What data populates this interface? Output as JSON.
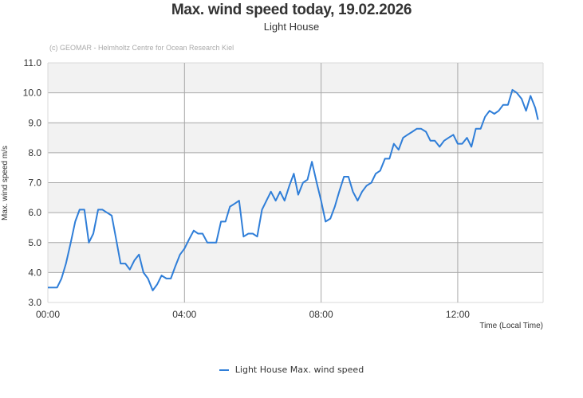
{
  "header": {
    "title": "Max. wind speed today, 19.02.2026",
    "subtitle": "Light House",
    "credit": "(c) GEOMAR - Helmholtz Centre for Ocean Research Kiel"
  },
  "legend": {
    "label": "Light House Max. wind speed",
    "color": "#2f7ed8"
  },
  "chart_data": {
    "type": "line",
    "title": "Max. wind speed today, 19.02.2026",
    "subtitle": "Light House",
    "xlabel": "Time (Local Time)",
    "ylabel": "Max. wind speed m/s",
    "ylim": [
      3.0,
      11.0
    ],
    "xlim_hours": [
      0,
      14.5
    ],
    "yticks": [
      "3.0",
      "4.0",
      "5.0",
      "6.0",
      "7.0",
      "8.0",
      "9.0",
      "10.0",
      "11.0"
    ],
    "xticks": [
      {
        "label": "00:00",
        "h": 0
      },
      {
        "label": "04:00",
        "h": 4
      },
      {
        "label": "08:00",
        "h": 8
      },
      {
        "label": "12:00",
        "h": 12
      }
    ],
    "grid": true,
    "legend_position": "bottom",
    "series": [
      {
        "name": "Light House Max. wind speed",
        "color": "#2f7ed8",
        "x_hours": [
          0,
          0.13,
          0.27,
          0.4,
          0.53,
          0.67,
          0.8,
          0.93,
          1.07,
          1.2,
          1.33,
          1.47,
          1.6,
          1.73,
          1.87,
          2.0,
          2.13,
          2.27,
          2.4,
          2.53,
          2.67,
          2.8,
          2.93,
          3.07,
          3.2,
          3.33,
          3.47,
          3.6,
          3.73,
          3.87,
          4.0,
          4.13,
          4.27,
          4.4,
          4.53,
          4.67,
          4.8,
          4.93,
          5.07,
          5.2,
          5.33,
          5.47,
          5.6,
          5.73,
          5.87,
          6.0,
          6.13,
          6.27,
          6.4,
          6.53,
          6.67,
          6.8,
          6.93,
          7.07,
          7.2,
          7.33,
          7.47,
          7.6,
          7.73,
          7.87,
          8.0,
          8.13,
          8.27,
          8.4,
          8.53,
          8.67,
          8.8,
          8.93,
          9.07,
          9.2,
          9.33,
          9.47,
          9.6,
          9.73,
          9.87,
          10.0,
          10.13,
          10.27,
          10.4,
          10.53,
          10.67,
          10.8,
          10.93,
          11.07,
          11.2,
          11.33,
          11.47,
          11.6,
          11.73,
          11.87,
          12.0,
          12.13,
          12.27,
          12.4,
          12.53,
          12.67,
          12.8,
          12.93,
          13.07,
          13.2,
          13.33,
          13.47,
          13.6,
          13.73,
          13.87,
          14.0,
          14.13,
          14.27,
          14.35
        ],
        "values": [
          3.5,
          3.5,
          3.5,
          3.8,
          4.3,
          5.0,
          5.7,
          6.1,
          6.1,
          5.0,
          5.3,
          6.1,
          6.1,
          6.0,
          5.9,
          5.1,
          4.3,
          4.3,
          4.1,
          4.4,
          4.6,
          4.0,
          3.8,
          3.4,
          3.6,
          3.9,
          3.8,
          3.8,
          4.2,
          4.6,
          4.8,
          5.1,
          5.4,
          5.3,
          5.3,
          5.0,
          5.0,
          5.0,
          5.7,
          5.7,
          6.2,
          6.3,
          6.4,
          5.2,
          5.3,
          5.3,
          5.2,
          6.1,
          6.4,
          6.7,
          6.4,
          6.7,
          6.4,
          6.9,
          7.3,
          6.6,
          7.0,
          7.1,
          7.7,
          7.0,
          6.4,
          5.7,
          5.8,
          6.2,
          6.7,
          7.2,
          7.2,
          6.7,
          6.4,
          6.7,
          6.9,
          7.0,
          7.3,
          7.4,
          7.8,
          7.8,
          8.3,
          8.1,
          8.5,
          8.6,
          8.7,
          8.8,
          8.8,
          8.7,
          8.4,
          8.4,
          8.2,
          8.4,
          8.5,
          8.6,
          8.3,
          8.3,
          8.5,
          8.2,
          8.8,
          8.8,
          9.2,
          9.4,
          9.3,
          9.4,
          9.6,
          9.6,
          10.1,
          10.0,
          9.8,
          9.4,
          9.9,
          9.5,
          9.1
        ]
      }
    ]
  }
}
